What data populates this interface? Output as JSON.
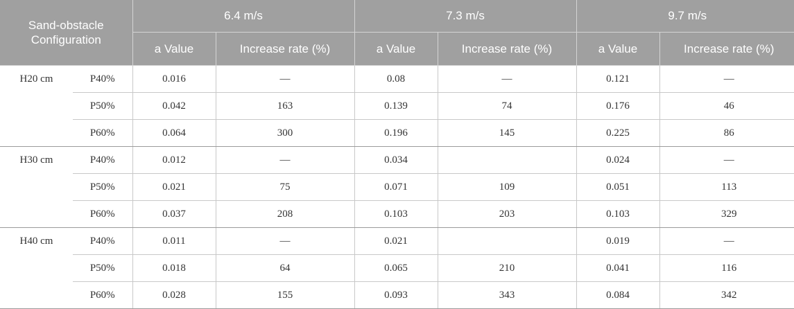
{
  "header": {
    "config_label": "Sand-obstacle Configuration",
    "speeds": [
      "6.4 m/s",
      "7.3 m/s",
      "9.7 m/s"
    ],
    "a_value_label": "a Value",
    "increase_label": "Increase rate (%)"
  },
  "groups": [
    {
      "height": "H20 cm",
      "rows": [
        {
          "p": "P40%",
          "cells": [
            "0.016",
            "—",
            "0.08",
            "—",
            "0.121",
            "—"
          ]
        },
        {
          "p": "P50%",
          "cells": [
            "0.042",
            "163",
            "0.139",
            "74",
            "0.176",
            "46"
          ]
        },
        {
          "p": "P60%",
          "cells": [
            "0.064",
            "300",
            "0.196",
            "145",
            "0.225",
            "86"
          ]
        }
      ]
    },
    {
      "height": "H30 cm",
      "rows": [
        {
          "p": "P40%",
          "cells": [
            "0.012",
            "—",
            "0.034",
            "",
            "0.024",
            "—"
          ]
        },
        {
          "p": "P50%",
          "cells": [
            "0.021",
            "75",
            "0.071",
            "109",
            "0.051",
            "113"
          ]
        },
        {
          "p": "P60%",
          "cells": [
            "0.037",
            "208",
            "0.103",
            "203",
            "0.103",
            "329"
          ]
        }
      ]
    },
    {
      "height": "H40 cm",
      "rows": [
        {
          "p": "P40%",
          "cells": [
            "0.011",
            "—",
            "0.021",
            "",
            "0.019",
            "—"
          ]
        },
        {
          "p": "P50%",
          "cells": [
            "0.018",
            "64",
            "0.065",
            "210",
            "0.041",
            "116"
          ]
        },
        {
          "p": "P60%",
          "cells": [
            "0.028",
            "155",
            "0.093",
            "343",
            "0.084",
            "342"
          ]
        }
      ]
    }
  ]
}
